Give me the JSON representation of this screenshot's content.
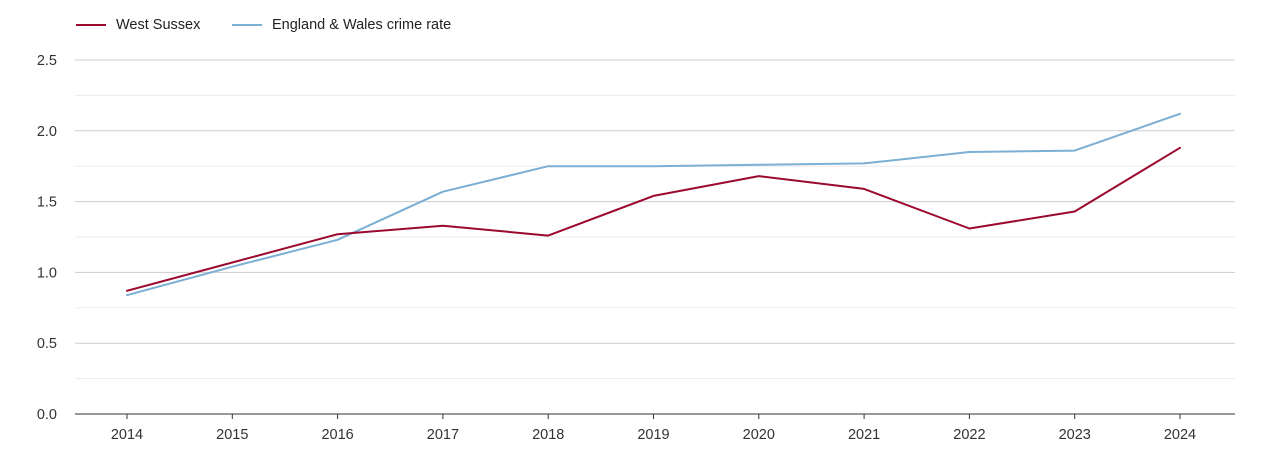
{
  "legend": {
    "item0": "West Sussex",
    "item1": "England & Wales crime rate"
  },
  "chart_data": {
    "type": "line",
    "title": "",
    "xlabel": "",
    "ylabel": "",
    "x": [
      "2014",
      "2015",
      "2016",
      "2017",
      "2018",
      "2019",
      "2020",
      "2021",
      "2022",
      "2023",
      "2024"
    ],
    "ylim": [
      0,
      2.5
    ],
    "y_ticks": [
      "0.0",
      "0.5",
      "1.0",
      "1.5",
      "2.0",
      "2.5"
    ],
    "grid": true,
    "legend_position": "top-left",
    "series": [
      {
        "name": "West Sussex",
        "color": "#9b0a2e",
        "values": [
          0.87,
          1.07,
          1.27,
          1.33,
          1.26,
          1.54,
          1.68,
          1.59,
          1.31,
          1.43,
          1.88
        ]
      },
      {
        "name": "England & Wales crime rate",
        "color": "#7bafd4",
        "values": [
          0.84,
          1.04,
          1.23,
          1.57,
          1.75,
          1.75,
          1.76,
          1.77,
          1.85,
          1.86,
          2.12
        ]
      }
    ]
  }
}
